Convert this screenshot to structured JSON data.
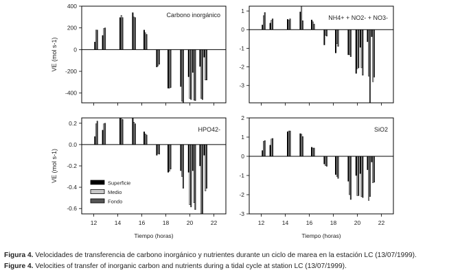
{
  "series_names": [
    "Superficie",
    "Medio",
    "Fondo"
  ],
  "colors": {
    "Superficie": "#000000",
    "Medio": "#c8c8c8",
    "Fondo": "#555555"
  },
  "ylabel": "VE (mol s-1)",
  "xlabel": "Tiempo (horas)",
  "caption": {
    "es_label": "Figura 4.",
    "es_text": " Velocidades de transferencia de carbono inorgánico y nutrientes durante un ciclo de marea en la estación LC (13/07/1999).",
    "en_label": "Figure 4.",
    "en_text": " Velocities of transfer of inorganic carbon and nutrients during a tidal cycle at station LC (13/07/1999)."
  },
  "chart_data": [
    {
      "type": "bar",
      "title": "Carbono inorgánico",
      "x": [
        12.2,
        12.85,
        14.3,
        15.35,
        16.3,
        17.35,
        18.3,
        19.35,
        20.0,
        20.35,
        20.95,
        21.3
      ],
      "series": [
        {
          "name": "Superficie",
          "values": [
            70,
            130,
            295,
            340,
            180,
            -160,
            -355,
            -340,
            -250,
            -210,
            -155,
            -70
          ]
        },
        {
          "name": "Medio",
          "values": [
            180,
            195,
            315,
            300,
            155,
            -150,
            -355,
            -475,
            -450,
            -465,
            -450,
            -280
          ]
        },
        {
          "name": "Fondo",
          "values": [
            180,
            200,
            295,
            295,
            140,
            -135,
            -350,
            -490,
            -460,
            -470,
            -460,
            -280
          ]
        }
      ],
      "xlim": [
        11,
        23
      ],
      "ylim": [
        -490,
        400
      ],
      "yticks": [
        "-400",
        "-200",
        "0",
        "200",
        "400"
      ],
      "xticks": [
        "12",
        "14",
        "16",
        "18",
        "20",
        "22"
      ],
      "show_xticklabels": false
    },
    {
      "type": "bar",
      "title": "NH4+ + NO2- + NO3-",
      "x": [
        12.2,
        12.85,
        14.3,
        15.35,
        16.3,
        17.35,
        18.3,
        19.35,
        20.0,
        20.35,
        20.95,
        21.3
      ],
      "series": [
        {
          "name": "Superficie",
          "values": [
            0.25,
            0.35,
            0.55,
            0.95,
            0.52,
            -0.82,
            -1.25,
            -1.35,
            -2.35,
            -0.95,
            -0.65,
            -0.38
          ]
        },
        {
          "name": "Medio",
          "values": [
            0.75,
            0.5,
            0.5,
            1.26,
            0.42,
            -0.3,
            -0.75,
            -1.35,
            -2.1,
            -2.05,
            -2.5,
            -2.8
          ]
        },
        {
          "name": "Fondo",
          "values": [
            0.92,
            0.58,
            0.58,
            0.48,
            0.3,
            -0.35,
            -0.9,
            -1.45,
            -2.05,
            -2.45,
            -3.93,
            -2.55
          ]
        }
      ],
      "xlim": [
        11,
        23
      ],
      "ylim": [
        -3.93,
        1.26
      ],
      "yticks": [
        "-3",
        "-2",
        "-1",
        "0",
        "1"
      ],
      "xticks": [
        "12",
        "14",
        "16",
        "18",
        "20",
        "22"
      ],
      "show_xticklabels": false
    },
    {
      "type": "bar",
      "title": "HPO42-",
      "x": [
        12.2,
        12.85,
        14.3,
        15.35,
        16.3,
        17.35,
        18.3,
        19.35,
        20.0,
        20.35,
        20.95,
        21.3
      ],
      "series": [
        {
          "name": "Superficie",
          "values": [
            0.075,
            0.135,
            0.25,
            0.25,
            0.12,
            -0.1,
            -0.26,
            -0.245,
            -0.26,
            -0.245,
            -0.2,
            -0.1
          ]
        },
        {
          "name": "Medio",
          "values": [
            0.195,
            0.195,
            0.25,
            0.21,
            0.1,
            -0.085,
            -0.25,
            -0.3,
            -0.565,
            -0.545,
            -0.65,
            -0.435
          ]
        },
        {
          "name": "Fondo",
          "values": [
            0.22,
            0.2,
            0.235,
            0.195,
            0.09,
            -0.09,
            -0.23,
            -0.41,
            -0.585,
            -0.61,
            -0.65,
            -0.41
          ]
        }
      ],
      "xlim": [
        11,
        23
      ],
      "ylim": [
        -0.65,
        0.25
      ],
      "yticks": [
        "-0.6",
        "-0.4",
        "-0.2",
        "0.0",
        "0.2"
      ],
      "xticks": [
        "12",
        "14",
        "16",
        "18",
        "20",
        "22"
      ],
      "show_xticklabels": true,
      "legend": "bottom-left"
    },
    {
      "type": "bar",
      "title": "SiO2",
      "x": [
        12.2,
        12.85,
        14.3,
        15.35,
        16.3,
        17.35,
        18.3,
        19.35,
        20.0,
        20.35,
        20.95,
        21.3
      ],
      "series": [
        {
          "name": "Superficie",
          "values": [
            0.3,
            0.58,
            1.28,
            1.18,
            0.47,
            -0.4,
            -0.95,
            -1.3,
            -1.0,
            -0.9,
            -0.7,
            -0.3
          ]
        },
        {
          "name": "Medio",
          "values": [
            0.78,
            0.9,
            1.32,
            1.15,
            0.43,
            -0.48,
            -1.05,
            -2.0,
            -2.05,
            -2.1,
            -2.3,
            -1.38
          ]
        },
        {
          "name": "Fondo",
          "values": [
            0.82,
            0.93,
            1.32,
            1.03,
            0.43,
            -0.52,
            -1.15,
            -2.25,
            -2.05,
            -2.15,
            -2.1,
            -1.35
          ]
        }
      ],
      "xlim": [
        11,
        23
      ],
      "ylim": [
        -3,
        2
      ],
      "yticks": [
        "-3",
        "-2",
        "-1",
        "0",
        "1",
        "2"
      ],
      "xticks": [
        "12",
        "14",
        "16",
        "18",
        "20",
        "22"
      ],
      "show_xticklabels": true
    }
  ]
}
